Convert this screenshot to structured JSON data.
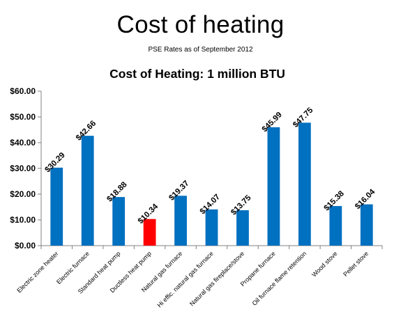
{
  "slide": {
    "title": "Cost of heating",
    "subtitle": "PSE Rates as of September 2012"
  },
  "chart_data": {
    "type": "bar",
    "title": "Cost of Heating: 1 million BTU",
    "xlabel": "",
    "ylabel": "",
    "ylim": [
      0,
      60
    ],
    "yticks": [
      {
        "value": 0,
        "label": "$0.00"
      },
      {
        "value": 10,
        "label": "$10.00"
      },
      {
        "value": 20,
        "label": "$20.00"
      },
      {
        "value": 30,
        "label": "$30.00"
      },
      {
        "value": 40,
        "label": "$40.00"
      },
      {
        "value": 50,
        "label": "$50.00"
      },
      {
        "value": 60,
        "label": "$60.00"
      }
    ],
    "grid": false,
    "legend": "none",
    "categories": [
      "Electric zone heater",
      "Electric furnace",
      "Standard heat pump",
      "Ductless heat pump",
      "Natural gas furnace",
      "Hi effic. natural gas furnace",
      "Natural gas fireplace/stove",
      "Propane furnace",
      "Oil furnace flame retention",
      "Wood stove",
      "Pellet stove"
    ],
    "values": [
      30.29,
      42.66,
      18.88,
      10.34,
      19.37,
      14.07,
      13.75,
      45.99,
      47.75,
      15.38,
      16.04
    ],
    "data_labels": [
      "$30.29",
      "$42.66",
      "$18.88",
      "$10.34",
      "$19.37",
      "$14.07",
      "$13.75",
      "$45.99",
      "$47.75",
      "$15.38",
      "$16.04"
    ],
    "colors": {
      "default": "#0070C0",
      "highlight": "#FF0000",
      "axis": "#808080"
    },
    "highlight_category": "Ductless heat pump"
  }
}
